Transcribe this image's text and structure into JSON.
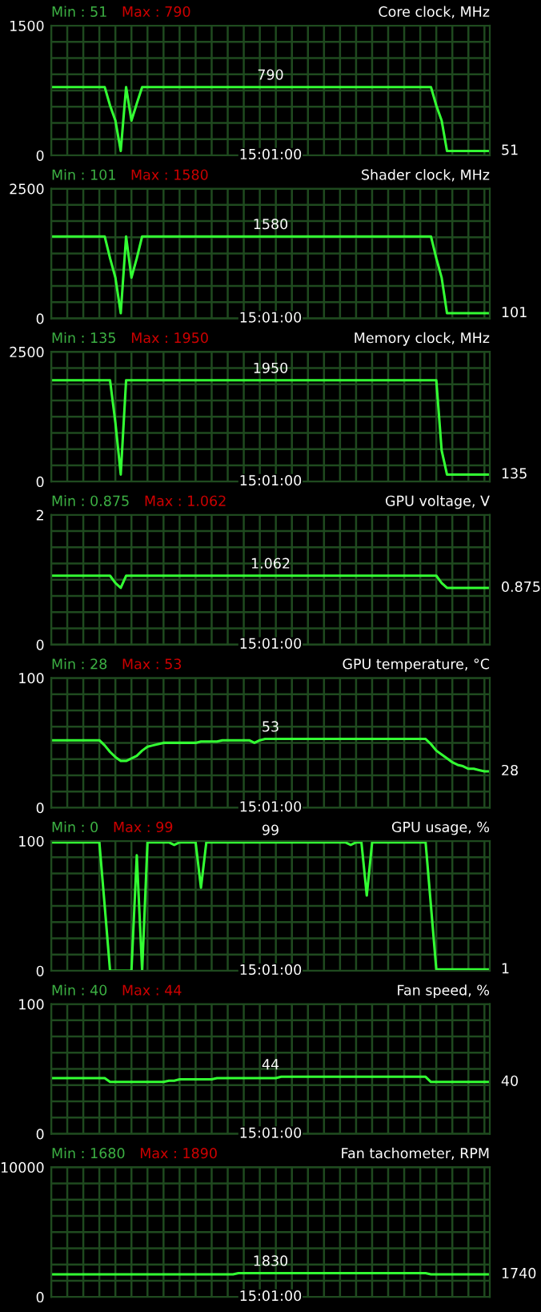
{
  "chart_data": [
    {
      "type": "line",
      "title": "Core clock, MHz",
      "categories": [
        null,
        null,
        null,
        null,
        null,
        null,
        null,
        null,
        null,
        null,
        null,
        null,
        null,
        null,
        null,
        null,
        null,
        null,
        null,
        null,
        null,
        null,
        null,
        null,
        null,
        null,
        null,
        null,
        null,
        null,
        null,
        null,
        null,
        null,
        null,
        null,
        null,
        null,
        null,
        null,
        null,
        null,
        null,
        null,
        null,
        null,
        null,
        null,
        null,
        null,
        null,
        null,
        null,
        null,
        null,
        null,
        null,
        null,
        null,
        null,
        null,
        null,
        null,
        null,
        null,
        null,
        null,
        null,
        null,
        null,
        null,
        null,
        null,
        null,
        null,
        null,
        null,
        null,
        null,
        null,
        null,
        null,
        null
      ],
      "series": [
        {
          "color": "#33ff33",
          "values": [
            790,
            790,
            790,
            790,
            790,
            790,
            790,
            790,
            790,
            790,
            790,
            576,
            403,
            51,
            790,
            403,
            600,
            790,
            790,
            790,
            790,
            790,
            790,
            790,
            790,
            790,
            790,
            790,
            790,
            790,
            790,
            790,
            790,
            790,
            790,
            790,
            790,
            790,
            790,
            790,
            790,
            790,
            790,
            790,
            790,
            790,
            790,
            790,
            790,
            790,
            790,
            790,
            790,
            790,
            790,
            790,
            790,
            790,
            790,
            790,
            790,
            790,
            790,
            790,
            790,
            790,
            790,
            790,
            790,
            790,
            790,
            790,
            576,
            403,
            51,
            51,
            51,
            51,
            51,
            51,
            51,
            51,
            51
          ]
        }
      ],
      "ylim": [
        0,
        1500
      ],
      "yticks": [
        0,
        {
          "value": 187.5,
          "label": null
        },
        {
          "value": 375,
          "label": null
        },
        {
          "value": 562.5,
          "label": null
        },
        {
          "value": 750,
          "label": null
        },
        {
          "value": 937.5,
          "label": null
        },
        {
          "value": 1125,
          "label": null
        },
        {
          "value": 1312.5,
          "label": null
        },
        1500
      ],
      "grid": true,
      "tick_labels": "y",
      "annotations": [
        "Min : 51",
        "Max : 790",
        {
          "text": "790",
          "y": 790
        },
        "51",
        "15:01:00"
      ]
    },
    {
      "type": "line",
      "title": "Shader clock, MHz",
      "categories": [
        null,
        null,
        null,
        null,
        null,
        null,
        null,
        null,
        null,
        null,
        null,
        null,
        null,
        null,
        null,
        null,
        null,
        null,
        null,
        null,
        null,
        null,
        null,
        null,
        null,
        null,
        null,
        null,
        null,
        null,
        null,
        null,
        null,
        null,
        null,
        null,
        null,
        null,
        null,
        null,
        null,
        null,
        null,
        null,
        null,
        null,
        null,
        null,
        null,
        null,
        null,
        null,
        null,
        null,
        null,
        null,
        null,
        null,
        null,
        null,
        null,
        null,
        null,
        null,
        null,
        null,
        null,
        null,
        null,
        null,
        null,
        null,
        null,
        null,
        null,
        null,
        null,
        null,
        null,
        null,
        null,
        null,
        null
      ],
      "series": [
        {
          "color": "#33ff33",
          "values": [
            1580,
            1580,
            1580,
            1580,
            1580,
            1580,
            1580,
            1580,
            1580,
            1580,
            1580,
            1160,
            787,
            101,
            1580,
            787,
            1160,
            1580,
            1580,
            1580,
            1580,
            1580,
            1580,
            1580,
            1580,
            1580,
            1580,
            1580,
            1580,
            1580,
            1580,
            1580,
            1580,
            1580,
            1580,
            1580,
            1580,
            1580,
            1580,
            1580,
            1580,
            1580,
            1580,
            1580,
            1580,
            1580,
            1580,
            1580,
            1580,
            1580,
            1580,
            1580,
            1580,
            1580,
            1580,
            1580,
            1580,
            1580,
            1580,
            1580,
            1580,
            1580,
            1580,
            1580,
            1580,
            1580,
            1580,
            1580,
            1580,
            1580,
            1580,
            1580,
            1160,
            787,
            101,
            101,
            101,
            101,
            101,
            101,
            101,
            101,
            101
          ]
        }
      ],
      "ylim": [
        0,
        2500
      ],
      "yticks": [
        0,
        {
          "value": 312.5,
          "label": null
        },
        {
          "value": 625,
          "label": null
        },
        {
          "value": 937.5,
          "label": null
        },
        {
          "value": 1250,
          "label": null
        },
        {
          "value": 1562.5,
          "label": null
        },
        {
          "value": 1875,
          "label": null
        },
        {
          "value": 2187.5,
          "label": null
        },
        2500
      ],
      "grid": true,
      "tick_labels": "y",
      "annotations": [
        "Min : 101",
        "Max : 1580",
        {
          "text": "1580",
          "y": 1580
        },
        "101",
        "15:01:00"
      ]
    },
    {
      "type": "line",
      "title": "Memory clock, MHz",
      "categories": [
        null,
        null,
        null,
        null,
        null,
        null,
        null,
        null,
        null,
        null,
        null,
        null,
        null,
        null,
        null,
        null,
        null,
        null,
        null,
        null,
        null,
        null,
        null,
        null,
        null,
        null,
        null,
        null,
        null,
        null,
        null,
        null,
        null,
        null,
        null,
        null,
        null,
        null,
        null,
        null,
        null,
        null,
        null,
        null,
        null,
        null,
        null,
        null,
        null,
        null,
        null,
        null,
        null,
        null,
        null,
        null,
        null,
        null,
        null,
        null,
        null,
        null,
        null,
        null,
        null,
        null,
        null,
        null,
        null,
        null,
        null,
        null,
        null,
        null,
        null,
        null,
        null,
        null,
        null,
        null,
        null,
        null,
        null
      ],
      "series": [
        {
          "color": "#33ff33",
          "values": [
            1950,
            1950,
            1950,
            1950,
            1950,
            1950,
            1950,
            1950,
            1950,
            1950,
            1950,
            1950,
            1134,
            135,
            1950,
            1950,
            1950,
            1950,
            1950,
            1950,
            1950,
            1950,
            1950,
            1950,
            1950,
            1950,
            1950,
            1950,
            1950,
            1950,
            1950,
            1950,
            1950,
            1950,
            1950,
            1950,
            1950,
            1950,
            1950,
            1950,
            1950,
            1950,
            1950,
            1950,
            1950,
            1950,
            1950,
            1950,
            1950,
            1950,
            1950,
            1950,
            1950,
            1950,
            1950,
            1950,
            1950,
            1950,
            1950,
            1950,
            1950,
            1950,
            1950,
            1950,
            1950,
            1950,
            1950,
            1950,
            1950,
            1950,
            1950,
            1950,
            1950,
            600,
            135,
            135,
            135,
            135,
            135,
            135,
            135,
            135,
            135
          ]
        }
      ],
      "ylim": [
        0,
        2500
      ],
      "yticks": [
        0,
        {
          "value": 312.5,
          "label": null
        },
        {
          "value": 625,
          "label": null
        },
        {
          "value": 937.5,
          "label": null
        },
        {
          "value": 1250,
          "label": null
        },
        {
          "value": 1562.5,
          "label": null
        },
        {
          "value": 1875,
          "label": null
        },
        {
          "value": 2187.5,
          "label": null
        },
        2500
      ],
      "grid": true,
      "tick_labels": "y",
      "annotations": [
        "Min : 135",
        "Max : 1950",
        {
          "text": "1950",
          "y": 1950
        },
        "135",
        "15:01:00"
      ]
    },
    {
      "type": "line",
      "title": "GPU voltage, V",
      "categories": [
        null,
        null,
        null,
        null,
        null,
        null,
        null,
        null,
        null,
        null,
        null,
        null,
        null,
        null,
        null,
        null,
        null,
        null,
        null,
        null,
        null,
        null,
        null,
        null,
        null,
        null,
        null,
        null,
        null,
        null,
        null,
        null,
        null,
        null,
        null,
        null,
        null,
        null,
        null,
        null,
        null,
        null,
        null,
        null,
        null,
        null,
        null,
        null,
        null,
        null,
        null,
        null,
        null,
        null,
        null,
        null,
        null,
        null,
        null,
        null,
        null,
        null,
        null,
        null,
        null,
        null,
        null,
        null,
        null,
        null,
        null,
        null,
        null,
        null,
        null,
        null,
        null,
        null,
        null,
        null,
        null,
        null,
        null
      ],
      "series": [
        {
          "color": "#33ff33",
          "values": [
            1.062,
            1.062,
            1.062,
            1.062,
            1.062,
            1.062,
            1.062,
            1.062,
            1.062,
            1.062,
            1.062,
            1.062,
            0.95,
            0.875,
            1.062,
            1.062,
            1.062,
            1.062,
            1.062,
            1.062,
            1.062,
            1.062,
            1.062,
            1.062,
            1.062,
            1.062,
            1.062,
            1.062,
            1.062,
            1.062,
            1.062,
            1.062,
            1.062,
            1.062,
            1.062,
            1.062,
            1.062,
            1.062,
            1.062,
            1.062,
            1.062,
            1.062,
            1.062,
            1.062,
            1.062,
            1.062,
            1.062,
            1.062,
            1.062,
            1.062,
            1.062,
            1.062,
            1.062,
            1.062,
            1.062,
            1.062,
            1.062,
            1.062,
            1.062,
            1.062,
            1.062,
            1.062,
            1.062,
            1.062,
            1.062,
            1.062,
            1.062,
            1.062,
            1.062,
            1.062,
            1.062,
            1.062,
            1.062,
            0.95,
            0.875,
            0.875,
            0.875,
            0.875,
            0.875,
            0.875,
            0.875,
            0.875,
            0.875
          ]
        }
      ],
      "ylim": [
        0,
        2
      ],
      "yticks": [
        0,
        {
          "value": 0.25,
          "label": null
        },
        {
          "value": 0.5,
          "label": null
        },
        {
          "value": 0.75,
          "label": null
        },
        {
          "value": 1,
          "label": null
        },
        {
          "value": 1.25,
          "label": null
        },
        {
          "value": 1.5,
          "label": null
        },
        {
          "value": 1.75,
          "label": null
        },
        2
      ],
      "grid": true,
      "tick_labels": "y",
      "annotations": [
        "Min : 0.875",
        "Max : 1.062",
        {
          "text": "1.062",
          "y": 1.062
        },
        "0.875",
        "15:01:00"
      ]
    },
    {
      "type": "line",
      "title": "GPU temperature, °C",
      "categories": [
        null,
        null,
        null,
        null,
        null,
        null,
        null,
        null,
        null,
        null,
        null,
        null,
        null,
        null,
        null,
        null,
        null,
        null,
        null,
        null,
        null,
        null,
        null,
        null,
        null,
        null,
        null,
        null,
        null,
        null,
        null,
        null,
        null,
        null,
        null,
        null,
        null,
        null,
        null,
        null,
        null,
        null,
        null,
        null,
        null,
        null,
        null,
        null,
        null,
        null,
        null,
        null,
        null,
        null,
        null,
        null,
        null,
        null,
        null,
        null,
        null,
        null,
        null,
        null,
        null,
        null,
        null,
        null,
        null,
        null,
        null,
        null,
        null,
        null,
        null,
        null,
        null,
        null,
        null,
        null,
        null,
        null,
        null
      ],
      "series": [
        {
          "color": "#33ff33",
          "values": [
            52,
            52,
            52,
            52,
            52,
            52,
            52,
            52,
            52,
            52,
            48,
            43,
            39,
            36,
            36,
            38,
            40,
            44,
            47,
            48,
            49,
            50,
            50,
            50,
            50,
            50,
            50,
            50,
            51,
            51,
            51,
            51,
            52,
            52,
            52,
            52,
            52,
            52,
            50,
            52,
            53,
            53,
            53,
            53,
            53,
            53,
            53,
            53,
            53,
            53,
            53,
            53,
            53,
            53,
            53,
            53,
            53,
            53,
            53,
            53,
            53,
            53,
            53,
            53,
            53,
            53,
            53,
            53,
            53,
            53,
            53,
            49,
            44,
            41,
            38,
            35,
            33,
            32,
            30,
            30,
            29,
            28,
            28
          ]
        }
      ],
      "ylim": [
        0,
        100
      ],
      "yticks": [
        0,
        {
          "value": 12.5,
          "label": null
        },
        {
          "value": 25,
          "label": null
        },
        {
          "value": 37.5,
          "label": null
        },
        {
          "value": 50,
          "label": null
        },
        {
          "value": 62.5,
          "label": null
        },
        {
          "value": 75,
          "label": null
        },
        {
          "value": 87.5,
          "label": null
        },
        100
      ],
      "grid": true,
      "tick_labels": "y",
      "annotations": [
        "Min : 28",
        "Max : 53",
        {
          "text": "53",
          "y": 53
        },
        "28",
        "15:01:00"
      ]
    },
    {
      "type": "line",
      "title": "GPU usage, %",
      "categories": [
        null,
        null,
        null,
        null,
        null,
        null,
        null,
        null,
        null,
        null,
        null,
        null,
        null,
        null,
        null,
        null,
        null,
        null,
        null,
        null,
        null,
        null,
        null,
        null,
        null,
        null,
        null,
        null,
        null,
        null,
        null,
        null,
        null,
        null,
        null,
        null,
        null,
        null,
        null,
        null,
        null,
        null,
        null,
        null,
        null,
        null,
        null,
        null,
        null,
        null,
        null,
        null,
        null,
        null,
        null,
        null,
        null,
        null,
        null,
        null,
        null,
        null,
        null,
        null,
        null,
        null,
        null,
        null,
        null,
        null,
        null,
        null,
        null,
        null,
        null,
        null,
        null,
        null,
        null,
        null,
        null,
        null,
        null
      ],
      "series": [
        {
          "color": "#33ff33",
          "values": [
            99,
            99,
            99,
            99,
            99,
            99,
            99,
            99,
            99,
            99,
            50,
            0,
            0,
            0,
            0,
            0,
            89,
            0,
            99,
            99,
            99,
            99,
            99,
            97,
            99,
            99,
            99,
            99,
            64,
            99,
            99,
            99,
            99,
            99,
            99,
            99,
            99,
            99,
            99,
            99,
            99,
            99,
            99,
            99,
            99,
            99,
            99,
            99,
            99,
            99,
            99,
            99,
            99,
            99,
            99,
            99,
            97,
            99,
            99,
            58,
            99,
            99,
            99,
            99,
            99,
            99,
            99,
            99,
            99,
            99,
            99,
            50,
            1,
            1,
            1,
            1,
            1,
            1,
            1,
            1,
            1,
            1,
            1
          ]
        }
      ],
      "ylim": [
        0,
        100
      ],
      "yticks": [
        0,
        {
          "value": 12.5,
          "label": null
        },
        {
          "value": 25,
          "label": null
        },
        {
          "value": 37.5,
          "label": null
        },
        {
          "value": 50,
          "label": null
        },
        {
          "value": 62.5,
          "label": null
        },
        {
          "value": 75,
          "label": null
        },
        {
          "value": 87.5,
          "label": null
        },
        100
      ],
      "grid": true,
      "tick_labels": "y",
      "annotations": [
        "Min : 0",
        "Max : 99",
        {
          "text": "99",
          "y": 99
        },
        "1",
        "15:01:00"
      ]
    },
    {
      "type": "line",
      "title": "Fan speed, %",
      "categories": [
        null,
        null,
        null,
        null,
        null,
        null,
        null,
        null,
        null,
        null,
        null,
        null,
        null,
        null,
        null,
        null,
        null,
        null,
        null,
        null,
        null,
        null,
        null,
        null,
        null,
        null,
        null,
        null,
        null,
        null,
        null,
        null,
        null,
        null,
        null,
        null,
        null,
        null,
        null,
        null,
        null,
        null,
        null,
        null,
        null,
        null,
        null,
        null,
        null,
        null,
        null,
        null,
        null,
        null,
        null,
        null,
        null,
        null,
        null,
        null,
        null,
        null,
        null,
        null,
        null,
        null,
        null,
        null,
        null,
        null,
        null,
        null,
        null,
        null,
        null,
        null,
        null,
        null,
        null,
        null,
        null,
        null,
        null
      ],
      "series": [
        {
          "color": "#33ff33",
          "values": [
            43,
            43,
            43,
            43,
            43,
            43,
            43,
            43,
            43,
            43,
            43,
            40,
            40,
            40,
            40,
            40,
            40,
            40,
            40,
            40,
            40,
            40,
            41,
            41,
            42,
            42,
            42,
            42,
            42,
            42,
            42,
            43,
            43,
            43,
            43,
            43,
            43,
            43,
            43,
            43,
            43,
            43,
            43,
            44,
            44,
            44,
            44,
            44,
            44,
            44,
            44,
            44,
            44,
            44,
            44,
            44,
            44,
            44,
            44,
            44,
            44,
            44,
            44,
            44,
            44,
            44,
            44,
            44,
            44,
            44,
            44,
            40,
            40,
            40,
            40,
            40,
            40,
            40,
            40,
            40,
            40,
            40,
            40
          ]
        }
      ],
      "ylim": [
        0,
        100
      ],
      "yticks": [
        0,
        {
          "value": 12.5,
          "label": null
        },
        {
          "value": 25,
          "label": null
        },
        {
          "value": 37.5,
          "label": null
        },
        {
          "value": 50,
          "label": null
        },
        {
          "value": 62.5,
          "label": null
        },
        {
          "value": 75,
          "label": null
        },
        {
          "value": 87.5,
          "label": null
        },
        100
      ],
      "grid": true,
      "tick_labels": "y",
      "annotations": [
        "Min : 40",
        "Max : 44",
        {
          "text": "44",
          "y": 44
        },
        "40",
        "15:01:00"
      ]
    },
    {
      "type": "line",
      "title": "Fan tachometer, RPM",
      "categories": [
        null,
        null,
        null,
        null,
        null,
        null,
        null,
        null,
        null,
        null,
        null,
        null,
        null,
        null,
        null,
        null,
        null,
        null,
        null,
        null,
        null,
        null,
        null,
        null,
        null,
        null,
        null,
        null,
        null,
        null,
        null,
        null,
        null,
        null,
        null,
        null,
        null,
        null,
        null,
        null,
        null,
        null,
        null,
        null,
        null,
        null,
        null,
        null,
        null,
        null,
        null,
        null,
        null,
        null,
        null,
        null,
        null,
        null,
        null,
        null,
        null,
        null,
        null,
        null,
        null,
        null,
        null,
        null,
        null,
        null,
        null,
        null,
        null,
        null,
        null,
        null,
        null,
        null,
        null,
        null,
        null,
        null,
        null
      ],
      "series": [
        {
          "color": "#33ff33",
          "values": [
            1740,
            1740,
            1740,
            1740,
            1740,
            1740,
            1740,
            1740,
            1740,
            1740,
            1740,
            1740,
            1740,
            1740,
            1740,
            1740,
            1740,
            1740,
            1740,
            1740,
            1740,
            1740,
            1740,
            1740,
            1740,
            1740,
            1740,
            1740,
            1740,
            1740,
            1740,
            1740,
            1740,
            1740,
            1740,
            1830,
            1830,
            1830,
            1830,
            1830,
            1830,
            1830,
            1830,
            1830,
            1830,
            1830,
            1830,
            1830,
            1830,
            1830,
            1830,
            1830,
            1830,
            1830,
            1830,
            1830,
            1830,
            1830,
            1830,
            1830,
            1830,
            1830,
            1830,
            1830,
            1830,
            1830,
            1830,
            1830,
            1830,
            1830,
            1830,
            1740,
            1740,
            1740,
            1740,
            1740,
            1740,
            1740,
            1740,
            1740,
            1740,
            1740,
            1740
          ]
        }
      ],
      "ylim": [
        0,
        10000
      ],
      "yticks": [
        0,
        {
          "value": 1250,
          "label": null
        },
        {
          "value": 2500,
          "label": null
        },
        {
          "value": 3750,
          "label": null
        },
        {
          "value": 5000,
          "label": null
        },
        {
          "value": 6250,
          "label": null
        },
        {
          "value": 7500,
          "label": null
        },
        {
          "value": 8750,
          "label": null
        },
        10000
      ],
      "grid": true,
      "tick_labels": "y",
      "annotations": [
        "Min : 1680",
        "Max : 1890",
        {
          "text": "1830",
          "y": 1830
        },
        "1740",
        "15:01:00"
      ]
    }
  ]
}
